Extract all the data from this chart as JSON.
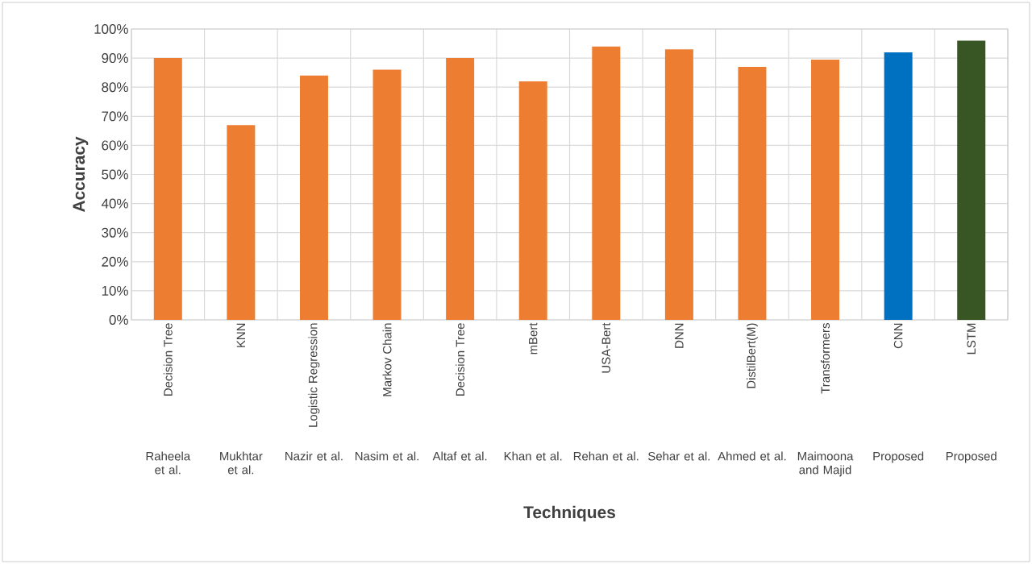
{
  "chart_data": {
    "type": "bar",
    "xlabel": "Techniques",
    "ylabel": "Accuracy",
    "categories": [
      "Decision Tree",
      "KNN",
      "Logistic Regression",
      "Markov Chain",
      "Decision Tree",
      "mBert",
      "USA-Bert",
      "DNN",
      "DistilBert(M)",
      "Transformers",
      "CNN",
      "LSTM"
    ],
    "values": [
      90,
      67,
      84,
      86,
      90,
      82,
      94,
      93,
      87,
      89.5,
      92,
      96
    ],
    "colors": [
      "#ed7d31",
      "#ed7d31",
      "#ed7d31",
      "#ed7d31",
      "#ed7d31",
      "#ed7d31",
      "#ed7d31",
      "#ed7d31",
      "#ed7d31",
      "#ed7d31",
      "#0070c0",
      "#375623"
    ],
    "annotations": [
      "Raheela et al.",
      "Mukhtar et al.",
      "Nazir et al.",
      "Nasim et al.",
      "Altaf et al.",
      "Khan et al.",
      "Rehan et al.",
      "Sehar et al.",
      "Ahmed et al.",
      "Maimoona and Majid",
      "Proposed",
      "Proposed"
    ],
    "ylim": [
      0,
      100
    ],
    "yticks": [
      {
        "value": 0,
        "label": "0%"
      },
      {
        "value": 10,
        "label": "10%"
      },
      {
        "value": 20,
        "label": "20%"
      },
      {
        "value": 30,
        "label": "30%"
      },
      {
        "value": 40,
        "label": "40%"
      },
      {
        "value": 50,
        "label": "50%"
      },
      {
        "value": 60,
        "label": "60%"
      },
      {
        "value": 70,
        "label": "70%"
      },
      {
        "value": 80,
        "label": "80%"
      },
      {
        "value": 90,
        "label": "90%"
      },
      {
        "value": 100,
        "label": "100%"
      }
    ],
    "grid": true
  }
}
